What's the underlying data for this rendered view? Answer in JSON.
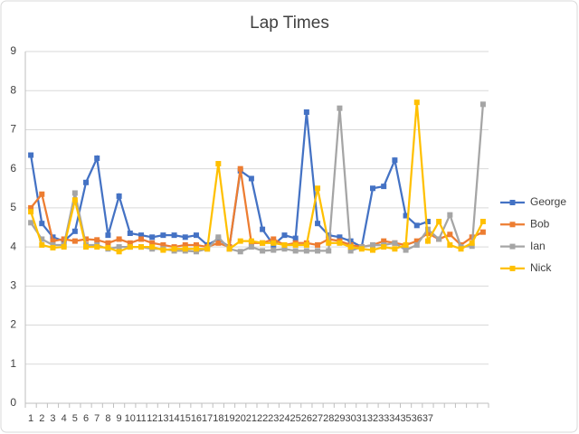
{
  "chart_data": {
    "type": "line",
    "title": "Lap Times",
    "categories": [
      "1",
      "2",
      "3",
      "4",
      "5",
      "6",
      "7",
      "8",
      "9",
      "10",
      "11",
      "12",
      "13",
      "14",
      "15",
      "16",
      "17",
      "18",
      "19",
      "20",
      "21",
      "22",
      "23",
      "24",
      "25",
      "26",
      "27",
      "28",
      "29",
      "30",
      "31",
      "32",
      "33",
      "34",
      "35",
      "36",
      "37",
      null,
      null,
      null,
      null,
      null
    ],
    "series": [
      {
        "name": "George",
        "color": "#4472c4",
        "values": [
          6.35,
          4.6,
          4.25,
          4.15,
          4.4,
          5.65,
          6.27,
          4.3,
          5.3,
          4.35,
          4.3,
          4.25,
          4.3,
          4.3,
          4.25,
          4.3,
          4.05,
          4.2,
          4.0,
          5.95,
          5.75,
          4.45,
          4.05,
          4.3,
          4.22,
          7.45,
          4.6,
          4.3,
          4.25,
          4.15,
          4.0,
          5.5,
          5.55,
          6.22,
          4.8,
          4.55,
          4.65,
          null,
          null,
          null,
          null,
          null
        ]
      },
      {
        "name": "Bob",
        "color": "#ed7d31",
        "values": [
          5.0,
          5.35,
          4.15,
          4.2,
          4.15,
          4.2,
          4.18,
          4.1,
          4.2,
          4.1,
          4.2,
          4.1,
          4.05,
          4.0,
          4.05,
          4.05,
          4.0,
          4.1,
          4.0,
          6.0,
          4.1,
          4.1,
          4.2,
          4.05,
          4.1,
          4.1,
          4.05,
          4.2,
          4.15,
          4.05,
          4.0,
          4.05,
          4.15,
          4.1,
          4.05,
          4.15,
          4.35,
          4.2,
          4.32,
          4.05,
          4.25,
          4.38
        ]
      },
      {
        "name": "Ian",
        "color": "#a5a5a5",
        "values": [
          4.62,
          4.2,
          4.05,
          4.05,
          5.38,
          4.05,
          4.05,
          3.95,
          4.0,
          4.0,
          4.0,
          3.95,
          3.95,
          3.9,
          3.9,
          3.88,
          3.95,
          4.25,
          3.95,
          3.88,
          4.0,
          3.9,
          3.92,
          3.95,
          3.9,
          3.9,
          3.9,
          3.9,
          7.55,
          3.9,
          4.0,
          4.05,
          4.05,
          4.1,
          3.92,
          4.05,
          4.45,
          4.2,
          4.82,
          4.0,
          4.02,
          7.65
        ]
      },
      {
        "name": "Nick",
        "color": "#ffc000",
        "values": [
          4.9,
          4.05,
          3.98,
          4.0,
          5.2,
          4.0,
          4.0,
          3.98,
          3.88,
          4.0,
          4.0,
          4.0,
          3.92,
          3.95,
          3.95,
          3.95,
          3.95,
          6.13,
          3.95,
          4.15,
          4.15,
          4.1,
          4.1,
          4.05,
          4.05,
          4.05,
          5.5,
          4.1,
          4.1,
          4.0,
          3.95,
          3.92,
          4.0,
          3.95,
          4.05,
          7.7,
          4.15,
          4.65,
          4.05,
          3.95,
          4.1,
          4.65
        ]
      }
    ],
    "ylim": [
      0,
      9
    ],
    "yticks": [
      0,
      1,
      2,
      3,
      4,
      5,
      6,
      7,
      8,
      9
    ],
    "grid": true,
    "legend": "right"
  }
}
